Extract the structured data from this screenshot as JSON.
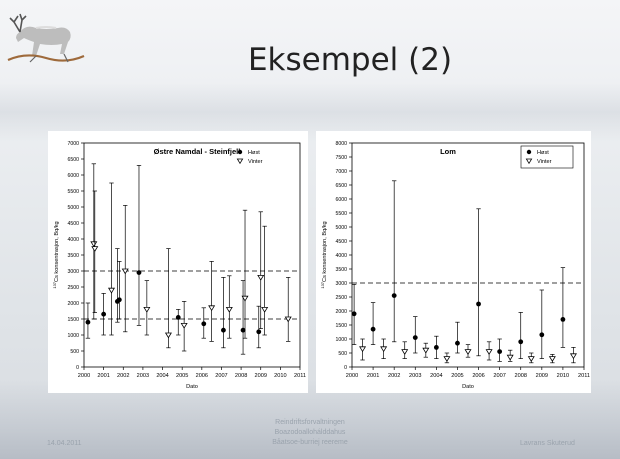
{
  "slide": {
    "title": "Eksempel (2)",
    "footer_date": "14.04.2011",
    "footer_org": [
      "Reindriftsforvaltningen",
      "Boazodoallohálddahus",
      "Båatsoe-burriej reereme"
    ],
    "footer_author": "Lavrans Skuterud"
  },
  "chart_data": [
    {
      "type": "scatter",
      "title": "Østre Namdal - Steinfjell",
      "xlabel": "Dato",
      "ylabel": "Cs konsentrasjon, Bq/kg",
      "ylabel_isotope": "137",
      "xlim": [
        2000,
        2011
      ],
      "ylim": [
        0,
        7000
      ],
      "yticks": [
        0,
        500,
        1000,
        1500,
        2000,
        2500,
        3000,
        3500,
        4000,
        4500,
        5000,
        5500,
        6000,
        6500,
        7000
      ],
      "xticks": [
        "2000",
        "2001",
        "2002",
        "2003",
        "2004",
        "2005",
        "2006",
        "2007",
        "2008",
        "2009",
        "2010",
        "2011"
      ],
      "reference_lines": [
        3000,
        1500
      ],
      "legend_position": "top-right",
      "series": [
        {
          "name": "Høst",
          "marker": "filled-circle",
          "points": [
            {
              "x": 2000.2,
              "y": 1400,
              "lo": 900,
              "hi": 2000
            },
            {
              "x": 2001.0,
              "y": 1650,
              "lo": 1000,
              "hi": 2300
            },
            {
              "x": 2001.7,
              "y": 2050,
              "lo": 1400,
              "hi": 3700
            },
            {
              "x": 2001.8,
              "y": 2100,
              "lo": 1500,
              "hi": 3300
            },
            {
              "x": 2002.8,
              "y": 2950,
              "lo": 1300,
              "hi": 6300
            },
            {
              "x": 2004.8,
              "y": 1550,
              "lo": 1000,
              "hi": 1800
            },
            {
              "x": 2006.1,
              "y": 1350,
              "lo": 900,
              "hi": 1850
            },
            {
              "x": 2007.1,
              "y": 1150,
              "lo": 600,
              "hi": 2800
            },
            {
              "x": 2008.1,
              "y": 1150,
              "lo": 400,
              "hi": 2700
            },
            {
              "x": 2008.9,
              "y": 1100,
              "lo": 600,
              "hi": 1900
            }
          ]
        },
        {
          "name": "Vinter",
          "marker": "open-triangle",
          "points": [
            {
              "x": 2000.5,
              "y": 3850,
              "lo": 1500,
              "hi": 6350
            },
            {
              "x": 2000.55,
              "y": 3700,
              "lo": 1700,
              "hi": 5500
            },
            {
              "x": 2001.4,
              "y": 2400,
              "lo": 1000,
              "hi": 5750
            },
            {
              "x": 2002.1,
              "y": 3000,
              "lo": 1100,
              "hi": 5050
            },
            {
              "x": 2003.2,
              "y": 1800,
              "lo": 1000,
              "hi": 2700
            },
            {
              "x": 2004.3,
              "y": 1000,
              "lo": 600,
              "hi": 3700
            },
            {
              "x": 2005.1,
              "y": 1300,
              "lo": 500,
              "hi": 2050
            },
            {
              "x": 2006.5,
              "y": 1850,
              "lo": 800,
              "hi": 3300
            },
            {
              "x": 2007.4,
              "y": 1800,
              "lo": 900,
              "hi": 2850
            },
            {
              "x": 2008.2,
              "y": 2150,
              "lo": 900,
              "hi": 4900
            },
            {
              "x": 2009.0,
              "y": 2800,
              "lo": 1200,
              "hi": 4850
            },
            {
              "x": 2009.2,
              "y": 1800,
              "lo": 1000,
              "hi": 4400
            },
            {
              "x": 2010.4,
              "y": 1500,
              "lo": 800,
              "hi": 2800
            }
          ]
        }
      ]
    },
    {
      "type": "scatter",
      "title": "Lom",
      "xlabel": "Dato",
      "ylabel": "Cs konsentrasjon, Bq/kg",
      "ylabel_isotope": "137",
      "xlim": [
        2000,
        2011
      ],
      "ylim": [
        0,
        8000
      ],
      "yticks": [
        0,
        500,
        1000,
        1500,
        2000,
        2500,
        3000,
        3500,
        4000,
        4500,
        5000,
        5500,
        6000,
        6500,
        7000,
        7500,
        8000
      ],
      "xticks": [
        "2000",
        "2001",
        "2002",
        "2003",
        "2004",
        "2005",
        "2006",
        "2007",
        "2008",
        "2009",
        "2010",
        "2011"
      ],
      "reference_lines": [
        3000
      ],
      "legend_position": "top-right",
      "series": [
        {
          "name": "Høst",
          "marker": "filled-circle",
          "points": [
            {
              "x": 2000.1,
              "y": 1900,
              "lo": 800,
              "hi": 2950
            },
            {
              "x": 2001.0,
              "y": 1350,
              "lo": 800,
              "hi": 2300
            },
            {
              "x": 2002.0,
              "y": 2550,
              "lo": 900,
              "hi": 6650
            },
            {
              "x": 2003.0,
              "y": 1050,
              "lo": 500,
              "hi": 1800
            },
            {
              "x": 2004.0,
              "y": 700,
              "lo": 300,
              "hi": 1100
            },
            {
              "x": 2005.0,
              "y": 850,
              "lo": 500,
              "hi": 1600
            },
            {
              "x": 2006.0,
              "y": 2250,
              "lo": 400,
              "hi": 5650
            },
            {
              "x": 2007.0,
              "y": 550,
              "lo": 200,
              "hi": 1000
            },
            {
              "x": 2008.0,
              "y": 900,
              "lo": 300,
              "hi": 1950
            },
            {
              "x": 2009.0,
              "y": 1150,
              "lo": 300,
              "hi": 2750
            },
            {
              "x": 2010.0,
              "y": 1700,
              "lo": 700,
              "hi": 3550
            }
          ]
        },
        {
          "name": "Vinter",
          "marker": "open-triangle",
          "points": [
            {
              "x": 2000.5,
              "y": 650,
              "lo": 250,
              "hi": 1000
            },
            {
              "x": 2001.5,
              "y": 650,
              "lo": 300,
              "hi": 1000
            },
            {
              "x": 2002.5,
              "y": 550,
              "lo": 300,
              "hi": 900
            },
            {
              "x": 2003.5,
              "y": 600,
              "lo": 350,
              "hi": 850
            },
            {
              "x": 2004.5,
              "y": 300,
              "lo": 150,
              "hi": 500
            },
            {
              "x": 2005.5,
              "y": 550,
              "lo": 350,
              "hi": 800
            },
            {
              "x": 2006.5,
              "y": 550,
              "lo": 250,
              "hi": 900
            },
            {
              "x": 2007.5,
              "y": 350,
              "lo": 200,
              "hi": 600
            },
            {
              "x": 2008.5,
              "y": 300,
              "lo": 150,
              "hi": 500
            },
            {
              "x": 2009.5,
              "y": 300,
              "lo": 150,
              "hi": 450
            },
            {
              "x": 2010.5,
              "y": 400,
              "lo": 150,
              "hi": 700
            }
          ]
        }
      ]
    }
  ]
}
